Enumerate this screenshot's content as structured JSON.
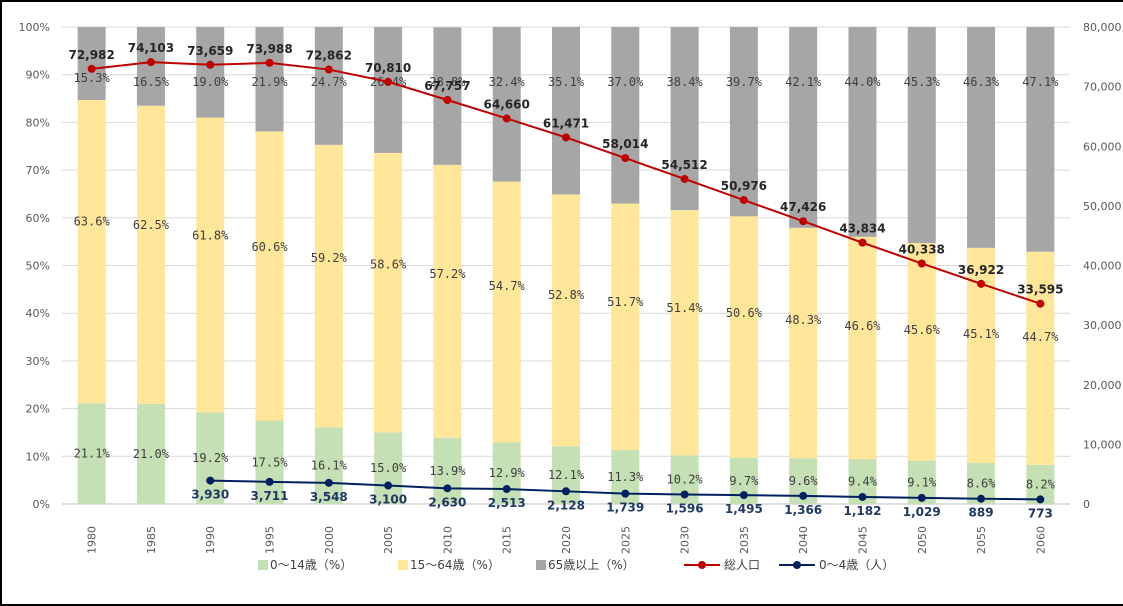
{
  "chart_data": {
    "type": "bar",
    "stacked": true,
    "categories": [
      "1980",
      "1985",
      "1990",
      "1995",
      "2000",
      "2005",
      "2010",
      "2015",
      "2020",
      "2025",
      "2030",
      "2035",
      "2040",
      "2045",
      "2050",
      "2055",
      "2060"
    ],
    "left_axis": {
      "min": 0,
      "max": 100,
      "step": 10,
      "tick_labels": [
        "0%",
        "10%",
        "20%",
        "30%",
        "40%",
        "50%",
        "60%",
        "70%",
        "80%",
        "90%",
        "100%"
      ]
    },
    "right_axis": {
      "min": 0,
      "max": 80000,
      "step": 10000,
      "tick_labels": [
        "0",
        "10,000",
        "20,000",
        "30,000",
        "40,000",
        "50,000",
        "60,000",
        "70,000",
        "80,000"
      ]
    },
    "series": [
      {
        "name": "0～14歳（%）",
        "kind": "bar",
        "axis": "left",
        "color": "#c5e0b4",
        "values": [
          21.1,
          21.0,
          19.2,
          17.5,
          16.1,
          15.0,
          13.9,
          12.9,
          12.1,
          11.3,
          10.2,
          9.7,
          9.6,
          9.4,
          9.1,
          8.6,
          8.2
        ],
        "labels": [
          "21.1%",
          "21.0%",
          "19.2%",
          "17.5%",
          "16.1%",
          "15.0%",
          "13.9%",
          "12.9%",
          "12.1%",
          "11.3%",
          "10.2%",
          "9.7%",
          "9.6%",
          "9.4%",
          "9.1%",
          "8.6%",
          "8.2%"
        ]
      },
      {
        "name": "15～64歳（%）",
        "kind": "bar",
        "axis": "left",
        "color": "#ffe699",
        "values": [
          63.6,
          62.5,
          61.8,
          60.6,
          59.2,
          58.6,
          57.2,
          54.7,
          52.8,
          51.7,
          51.4,
          50.6,
          48.3,
          46.6,
          45.6,
          45.1,
          44.7
        ],
        "labels": [
          "63.6%",
          "62.5%",
          "61.8%",
          "60.6%",
          "59.2%",
          "58.6%",
          "57.2%",
          "54.7%",
          "52.8%",
          "51.7%",
          "51.4%",
          "50.6%",
          "48.3%",
          "46.6%",
          "45.6%",
          "45.1%",
          "44.7%"
        ]
      },
      {
        "name": "65歳以上（%）",
        "kind": "bar",
        "axis": "left",
        "color": "#a6a6a6",
        "values": [
          15.3,
          16.5,
          19.0,
          21.9,
          24.7,
          26.4,
          28.8,
          32.4,
          35.1,
          37.0,
          38.4,
          39.7,
          42.1,
          44.0,
          45.3,
          46.3,
          47.1
        ],
        "labels": [
          "15.3%",
          "16.5%",
          "19.0%",
          "21.9%",
          "24.7%",
          "26.4%",
          "28.8%",
          "32.4%",
          "35.1%",
          "37.0%",
          "38.4%",
          "39.7%",
          "42.1%",
          "44.0%",
          "45.3%",
          "46.3%",
          "47.1%"
        ]
      },
      {
        "name": "総人口",
        "kind": "line",
        "axis": "right",
        "color": "#c00000",
        "values": [
          72982,
          74103,
          73659,
          73988,
          72862,
          70810,
          67757,
          64660,
          61471,
          58014,
          54512,
          50976,
          47426,
          43834,
          40338,
          36922,
          33595
        ],
        "labels": [
          "72,982",
          "74,103",
          "73,659",
          "73,988",
          "72,862",
          "70,810",
          "67,757",
          "64,660",
          "61,471",
          "58,014",
          "54,512",
          "50,976",
          "47,426",
          "43,834",
          "40,338",
          "36,922",
          "33,595"
        ]
      },
      {
        "name": "0～4歳（人）",
        "kind": "line",
        "axis": "right",
        "color": "#002060",
        "values": [
          null,
          null,
          3930,
          3711,
          3548,
          3100,
          2630,
          2513,
          2128,
          1739,
          1596,
          1495,
          1366,
          1182,
          1029,
          889,
          773
        ],
        "labels": [
          null,
          null,
          "3,930",
          "3,711",
          "3,548",
          "3,100",
          "2,630",
          "2,513",
          "2,128",
          "1,739",
          "1,596",
          "1,495",
          "1,366",
          "1,182",
          "1,029",
          "889",
          "773"
        ]
      }
    ],
    "legend_position": "bottom",
    "grid": true
  }
}
